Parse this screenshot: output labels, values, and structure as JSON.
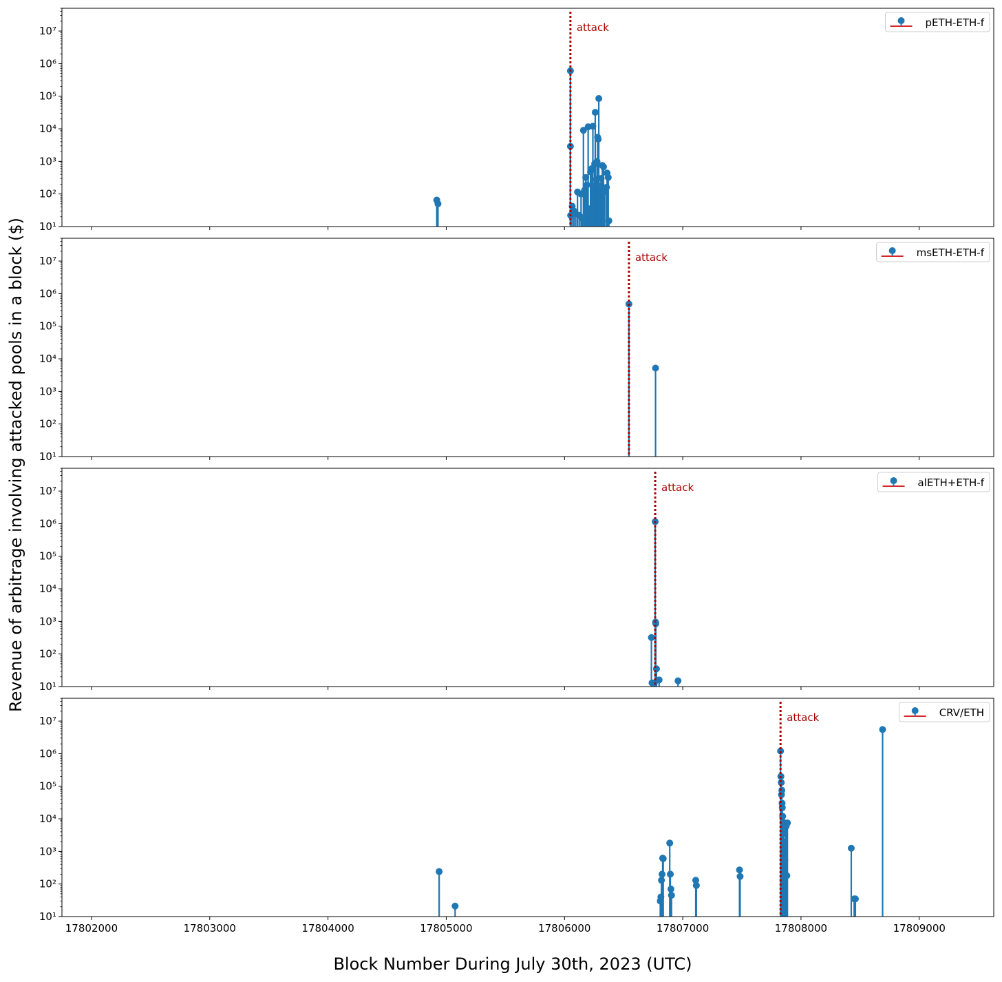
{
  "figure": {
    "ylabel": "Revenue of arbitrage involving attacked pools in a block ($)",
    "xlabel": "Block Number During July 30th, 2023 (UTC)"
  },
  "colors": {
    "series": "#1f77b4",
    "legend_line": "#d62728",
    "attack": "#aa0000"
  },
  "chart_data": [
    {
      "type": "stem",
      "legend": "pETH-ETH-f",
      "yscale": "log",
      "ylim": [
        10,
        50000000
      ],
      "xlim": [
        17801750,
        17809630
      ],
      "x_ticks": [
        17802000,
        17803000,
        17804000,
        17805000,
        17806000,
        17807000,
        17808000,
        17809000
      ],
      "y_ticks": [
        10,
        100,
        1000,
        10000,
        100000,
        1000000,
        10000000
      ],
      "attack": {
        "x": 17806050,
        "label": "attack"
      },
      "points": [
        [
          17804920,
          65
        ],
        [
          17804930,
          50
        ],
        [
          17806050,
          600000
        ],
        [
          17806050,
          2900
        ],
        [
          17806052,
          22
        ],
        [
          17806065,
          42
        ],
        [
          17806080,
          30
        ],
        [
          17806095,
          25
        ],
        [
          17806110,
          115
        ],
        [
          17806125,
          22
        ],
        [
          17806140,
          100
        ],
        [
          17806150,
          18
        ],
        [
          17806160,
          9000
        ],
        [
          17806170,
          130
        ],
        [
          17806180,
          320
        ],
        [
          17806190,
          190
        ],
        [
          17806200,
          11500
        ],
        [
          17806210,
          35
        ],
        [
          17806220,
          480
        ],
        [
          17806230,
          600
        ],
        [
          17806240,
          12000
        ],
        [
          17806250,
          180
        ],
        [
          17806255,
          850
        ],
        [
          17806260,
          32000
        ],
        [
          17806270,
          280
        ],
        [
          17806275,
          1000
        ],
        [
          17806280,
          5500
        ],
        [
          17806285,
          4800
        ],
        [
          17806290,
          85000
        ],
        [
          17806295,
          60
        ],
        [
          17806300,
          180
        ],
        [
          17806310,
          300
        ],
        [
          17806320,
          750
        ],
        [
          17806330,
          680
        ],
        [
          17806340,
          120
        ],
        [
          17806355,
          160
        ],
        [
          17806360,
          440
        ],
        [
          17806370,
          320
        ],
        [
          17806375,
          15
        ]
      ]
    },
    {
      "type": "stem",
      "legend": "msETH-ETH-f",
      "yscale": "log",
      "ylim": [
        10,
        50000000
      ],
      "xlim": [
        17801750,
        17809630
      ],
      "x_ticks": [
        17802000,
        17803000,
        17804000,
        17805000,
        17806000,
        17807000,
        17808000,
        17809000
      ],
      "y_ticks": [
        10,
        100,
        1000,
        10000,
        100000,
        1000000,
        10000000
      ],
      "attack": {
        "x": 17806545,
        "label": "attack"
      },
      "points": [
        [
          17806545,
          480000
        ],
        [
          17806770,
          5200
        ]
      ]
    },
    {
      "type": "stem",
      "legend": "alETH+ETH-f",
      "yscale": "log",
      "ylim": [
        10,
        50000000
      ],
      "xlim": [
        17801750,
        17809630
      ],
      "x_ticks": [
        17802000,
        17803000,
        17804000,
        17805000,
        17806000,
        17807000,
        17808000,
        17809000
      ],
      "y_ticks": [
        10,
        100,
        1000,
        10000,
        100000,
        1000000,
        10000000
      ],
      "attack": {
        "x": 17806767,
        "label": "attack"
      },
      "points": [
        [
          17806735,
          320
        ],
        [
          17806740,
          13
        ],
        [
          17806760,
          13
        ],
        [
          17806767,
          1150000
        ],
        [
          17806770,
          950
        ],
        [
          17806772,
          850
        ],
        [
          17806778,
          35
        ],
        [
          17806800,
          16
        ],
        [
          17806960,
          15
        ]
      ]
    },
    {
      "type": "stem",
      "legend": "CRV/ETH",
      "yscale": "log",
      "ylim": [
        10,
        50000000
      ],
      "xlim": [
        17801750,
        17809630
      ],
      "x_ticks": [
        17802000,
        17803000,
        17804000,
        17805000,
        17806000,
        17807000,
        17808000,
        17809000
      ],
      "y_ticks": [
        10,
        100,
        1000,
        10000,
        100000,
        1000000,
        10000000
      ],
      "attack": {
        "x": 17807827,
        "label": "attack"
      },
      "points": [
        [
          17804940,
          240
        ],
        [
          17805075,
          21
        ],
        [
          17806810,
          30
        ],
        [
          17806815,
          40
        ],
        [
          17806820,
          130
        ],
        [
          17806825,
          200
        ],
        [
          17806830,
          620
        ],
        [
          17806835,
          600
        ],
        [
          17806890,
          1800
        ],
        [
          17806895,
          200
        ],
        [
          17806900,
          70
        ],
        [
          17806905,
          45
        ],
        [
          17807110,
          130
        ],
        [
          17807115,
          90
        ],
        [
          17807480,
          270
        ],
        [
          17807485,
          170
        ],
        [
          17807827,
          1200000
        ],
        [
          17807830,
          200000
        ],
        [
          17807833,
          130000
        ],
        [
          17807835,
          55000
        ],
        [
          17807838,
          75000
        ],
        [
          17807840,
          30000
        ],
        [
          17807842,
          22000
        ],
        [
          17807845,
          12000
        ],
        [
          17807848,
          8000
        ],
        [
          17807850,
          5500
        ],
        [
          17807853,
          3500
        ],
        [
          17807856,
          2000
        ],
        [
          17807860,
          1200
        ],
        [
          17807863,
          550
        ],
        [
          17807866,
          200
        ],
        [
          17807870,
          7000
        ],
        [
          17807875,
          6000
        ],
        [
          17807880,
          180
        ],
        [
          17807885,
          7500
        ],
        [
          17808425,
          1250
        ],
        [
          17808450,
          35
        ],
        [
          17808460,
          35
        ],
        [
          17808690,
          5500000
        ]
      ]
    }
  ]
}
